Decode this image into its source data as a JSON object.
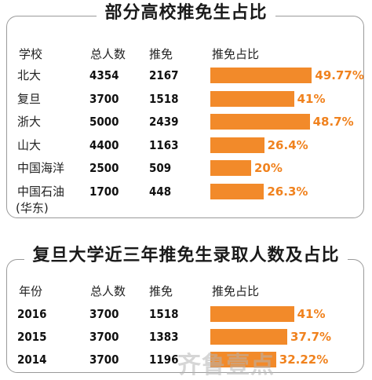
{
  "watermark": "齐鲁壹点",
  "chart_data": [
    {
      "type": "table",
      "title": "部分高校推免生占比",
      "columns": [
        "学校",
        "总人数",
        "推免",
        "推免占比"
      ],
      "rows": [
        {
          "label": "北大",
          "total": "4354",
          "recommended": "2167",
          "ratio": 49.77,
          "ratio_label": "49.77%"
        },
        {
          "label": "复旦",
          "total": "3700",
          "recommended": "1518",
          "ratio": 41,
          "ratio_label": "41%"
        },
        {
          "label": "浙大",
          "total": "5000",
          "recommended": "2439",
          "ratio": 48.7,
          "ratio_label": "48.7%"
        },
        {
          "label": "山大",
          "total": "4400",
          "recommended": "1163",
          "ratio": 26.4,
          "ratio_label": "26.4%"
        },
        {
          "label": "中国海洋",
          "total": "2500",
          "recommended": "509",
          "ratio": 20,
          "ratio_label": "20%"
        },
        {
          "label": "中国石油",
          "sublabel": "(华东)",
          "total": "1700",
          "recommended": "448",
          "ratio": 26.3,
          "ratio_label": "26.3%"
        }
      ],
      "bar_color": "#f28a2a",
      "label_color": "#f0821e"
    },
    {
      "type": "table",
      "title": "复旦大学近三年推免生录取人数及占比",
      "columns": [
        "年份",
        "总人数",
        "推免",
        "推免占比"
      ],
      "rows": [
        {
          "label": "2016",
          "total": "3700",
          "recommended": "1518",
          "ratio": 41,
          "ratio_label": "41%"
        },
        {
          "label": "2015",
          "total": "3700",
          "recommended": "1383",
          "ratio": 37.7,
          "ratio_label": "37.7%"
        },
        {
          "label": "2014",
          "total": "3700",
          "recommended": "1196",
          "ratio": 32.22,
          "ratio_label": "32.22%"
        }
      ],
      "bar_color": "#f28a2a",
      "label_color": "#f0821e"
    }
  ]
}
